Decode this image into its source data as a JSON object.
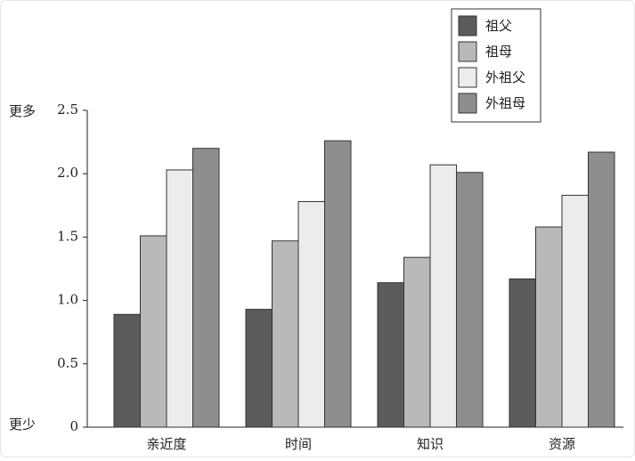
{
  "chart_data": {
    "type": "bar",
    "y_top_label": "更多",
    "y_bottom_label": "更少",
    "categories": [
      "亲近度",
      "时间",
      "知识",
      "资源"
    ],
    "series": [
      {
        "name": "祖父",
        "color": "#5b5b5b",
        "values": [
          0.89,
          0.93,
          1.14,
          1.17
        ]
      },
      {
        "name": "祖母",
        "color": "#b9b9b9",
        "values": [
          1.51,
          1.47,
          1.34,
          1.58
        ]
      },
      {
        "name": "外祖父",
        "color": "#ececec",
        "values": [
          2.03,
          1.78,
          2.07,
          1.83
        ]
      },
      {
        "name": "外祖母",
        "color": "#8e8e8e",
        "values": [
          2.2,
          2.26,
          2.01,
          2.17
        ]
      }
    ],
    "ylim": [
      0,
      2.5
    ],
    "yticks": [
      0,
      0.5,
      {
        "value": 1,
        "label": "1.0"
      },
      1.5,
      {
        "value": 2,
        "label": "2.0"
      },
      2.5
    ],
    "legend": "top-right"
  }
}
